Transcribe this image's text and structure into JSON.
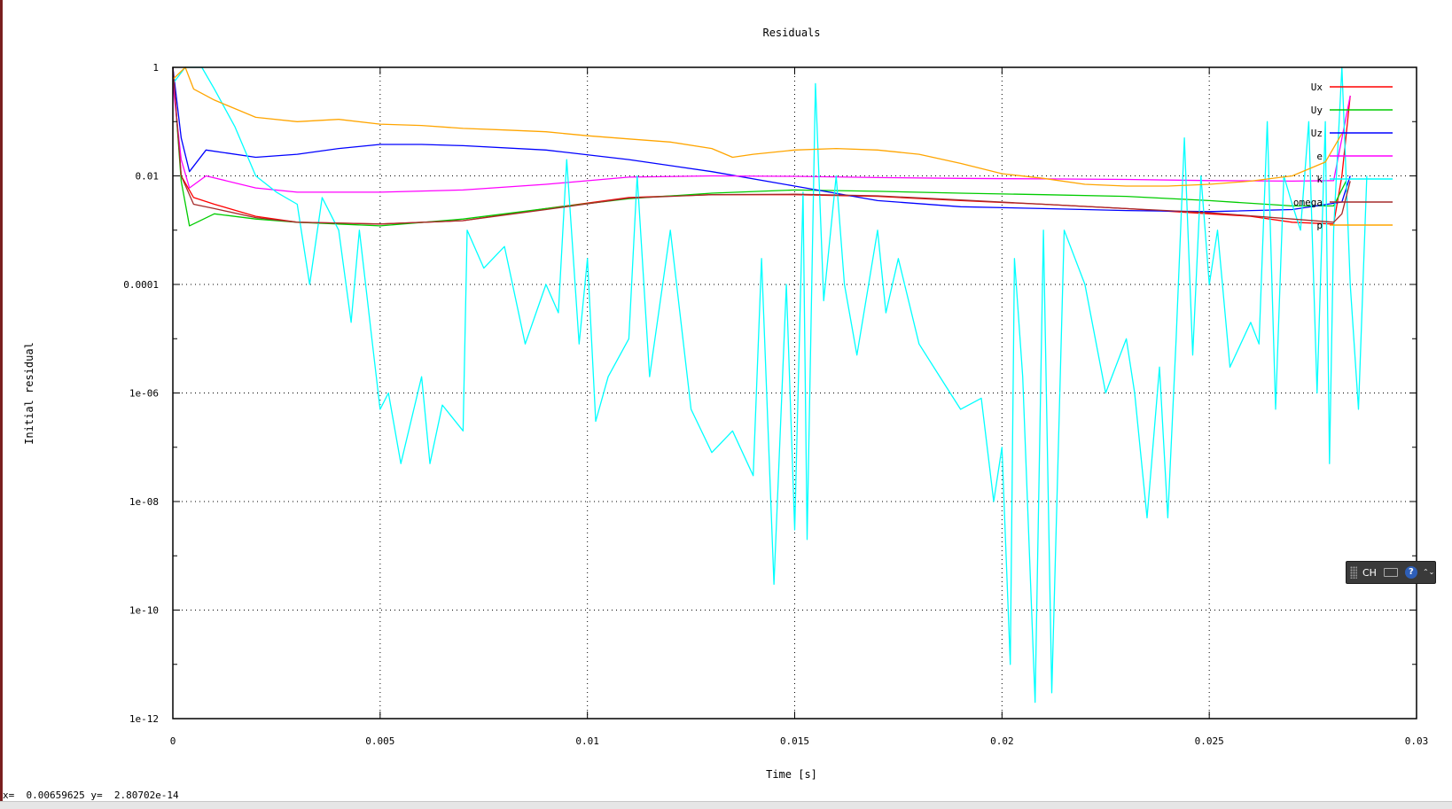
{
  "window": {
    "status_text": "x=  0.00659625 y=  2.80702e-14",
    "ime_toolbar": {
      "label": "CH",
      "keyboard_icon": "keyboard-icon",
      "help_icon": "help-icon",
      "help_glyph": "?",
      "more_glyph": "⌃⌄"
    }
  },
  "chart_data": {
    "type": "line",
    "title": "Residuals",
    "xlabel": "Time [s]",
    "ylabel": "Initial residual",
    "yscale": "log",
    "xlim": [
      0,
      0.03
    ],
    "ylim": [
      1e-12,
      1
    ],
    "grid": true,
    "legend_position": "top-right",
    "xticks": [
      {
        "value": 0,
        "label": "0"
      },
      {
        "value": 0.005,
        "label": "0.005"
      },
      {
        "value": 0.01,
        "label": "0.01"
      },
      {
        "value": 0.015,
        "label": "0.015"
      },
      {
        "value": 0.02,
        "label": "0.02"
      },
      {
        "value": 0.025,
        "label": "0.025"
      },
      {
        "value": 0.03,
        "label": "0.03"
      }
    ],
    "yticks": [
      {
        "value": 1,
        "label": "1"
      },
      {
        "value": 0.01,
        "label": "0.01"
      },
      {
        "value": 0.0001,
        "label": "0.0001"
      },
      {
        "value": 1e-06,
        "label": "1e-06"
      },
      {
        "value": 1e-08,
        "label": "1e-08"
      },
      {
        "value": 1e-10,
        "label": "1e-10"
      },
      {
        "value": 1e-12,
        "label": "1e-12"
      }
    ],
    "series": [
      {
        "name": "Ux",
        "color": "#ff0000",
        "points": [
          [
            0,
            1
          ],
          [
            0.0002,
            0.01
          ],
          [
            0.0005,
            0.004
          ],
          [
            0.001,
            0.003
          ],
          [
            0.002,
            0.0018
          ],
          [
            0.003,
            0.0014
          ],
          [
            0.005,
            0.0013
          ],
          [
            0.007,
            0.0015
          ],
          [
            0.009,
            0.0025
          ],
          [
            0.011,
            0.004
          ],
          [
            0.013,
            0.0045
          ],
          [
            0.015,
            0.0045
          ],
          [
            0.017,
            0.0042
          ],
          [
            0.019,
            0.0035
          ],
          [
            0.021,
            0.003
          ],
          [
            0.023,
            0.0025
          ],
          [
            0.025,
            0.002
          ],
          [
            0.026,
            0.0018
          ],
          [
            0.027,
            0.0014
          ],
          [
            0.028,
            0.0013
          ],
          [
            0.0282,
            0.01
          ],
          [
            0.0284,
            0.3
          ]
        ]
      },
      {
        "name": "Uy",
        "color": "#00cc00",
        "points": [
          [
            0,
            1
          ],
          [
            0.0002,
            0.008
          ],
          [
            0.0004,
            0.0012
          ],
          [
            0.001,
            0.002
          ],
          [
            0.002,
            0.0016
          ],
          [
            0.003,
            0.0014
          ],
          [
            0.005,
            0.0012
          ],
          [
            0.007,
            0.0016
          ],
          [
            0.009,
            0.0025
          ],
          [
            0.011,
            0.0038
          ],
          [
            0.013,
            0.0048
          ],
          [
            0.015,
            0.0055
          ],
          [
            0.017,
            0.0052
          ],
          [
            0.019,
            0.0048
          ],
          [
            0.021,
            0.0045
          ],
          [
            0.023,
            0.0042
          ],
          [
            0.025,
            0.0035
          ],
          [
            0.027,
            0.0028
          ],
          [
            0.028,
            0.0028
          ],
          [
            0.0283,
            0.008
          ]
        ]
      },
      {
        "name": "Uz",
        "color": "#0000ff",
        "points": [
          [
            0,
            1
          ],
          [
            0.0002,
            0.05
          ],
          [
            0.0004,
            0.012
          ],
          [
            0.0008,
            0.03
          ],
          [
            0.002,
            0.022
          ],
          [
            0.003,
            0.025
          ],
          [
            0.004,
            0.032
          ],
          [
            0.005,
            0.038
          ],
          [
            0.006,
            0.038
          ],
          [
            0.007,
            0.036
          ],
          [
            0.009,
            0.03
          ],
          [
            0.011,
            0.02
          ],
          [
            0.013,
            0.012
          ],
          [
            0.015,
            0.0065
          ],
          [
            0.017,
            0.0035
          ],
          [
            0.019,
            0.0027
          ],
          [
            0.021,
            0.0025
          ],
          [
            0.023,
            0.0023
          ],
          [
            0.025,
            0.0022
          ],
          [
            0.027,
            0.0024
          ],
          [
            0.0282,
            0.0033
          ],
          [
            0.0284,
            0.01
          ]
        ]
      },
      {
        "name": "e",
        "color": "#ff00ff",
        "points": [
          [
            0,
            0.5
          ],
          [
            0.0002,
            0.02
          ],
          [
            0.0004,
            0.006
          ],
          [
            0.0008,
            0.01
          ],
          [
            0.002,
            0.006
          ],
          [
            0.003,
            0.005
          ],
          [
            0.005,
            0.005
          ],
          [
            0.007,
            0.0055
          ],
          [
            0.009,
            0.007
          ],
          [
            0.011,
            0.0095
          ],
          [
            0.013,
            0.01
          ],
          [
            0.015,
            0.0098
          ],
          [
            0.017,
            0.0093
          ],
          [
            0.019,
            0.009
          ],
          [
            0.021,
            0.0088
          ],
          [
            0.023,
            0.0086
          ],
          [
            0.025,
            0.0082
          ],
          [
            0.027,
            0.008
          ],
          [
            0.028,
            0.0082
          ],
          [
            0.0284,
            0.3
          ]
        ]
      },
      {
        "name": "k",
        "color": "#00ffff",
        "points": [
          [
            0,
            0.5
          ],
          [
            0.0003,
            1
          ],
          [
            0.0007,
            1
          ],
          [
            0.001,
            0.4
          ],
          [
            0.0015,
            0.08
          ],
          [
            0.002,
            0.01
          ],
          [
            0.0025,
            0.005
          ],
          [
            0.003,
            0.003
          ],
          [
            0.0033,
            0.0001
          ],
          [
            0.0036,
            0.004
          ],
          [
            0.004,
            0.001
          ],
          [
            0.0043,
            2e-05
          ],
          [
            0.0045,
            0.001
          ],
          [
            0.0048,
            1e-05
          ],
          [
            0.005,
            5e-07
          ],
          [
            0.0052,
            1e-06
          ],
          [
            0.0055,
            5e-08
          ],
          [
            0.006,
            2e-06
          ],
          [
            0.0062,
            5e-08
          ],
          [
            0.0065,
            6e-07
          ],
          [
            0.007,
            2e-07
          ],
          [
            0.0071,
            0.001
          ],
          [
            0.0075,
            0.0002
          ],
          [
            0.008,
            0.0005
          ],
          [
            0.0085,
            8e-06
          ],
          [
            0.009,
            0.0001
          ],
          [
            0.0093,
            3e-05
          ],
          [
            0.0095,
            0.02
          ],
          [
            0.0098,
            8e-06
          ],
          [
            0.01,
            0.0003
          ],
          [
            0.0102,
            3e-07
          ],
          [
            0.0105,
            2e-06
          ],
          [
            0.011,
            1e-05
          ],
          [
            0.0112,
            0.01
          ],
          [
            0.0115,
            2e-06
          ],
          [
            0.012,
            0.001
          ],
          [
            0.0125,
            5e-07
          ],
          [
            0.013,
            8e-08
          ],
          [
            0.0135,
            2e-07
          ],
          [
            0.014,
            3e-08
          ],
          [
            0.0142,
            0.0003
          ],
          [
            0.0145,
            3e-10
          ],
          [
            0.0148,
            0.0001
          ],
          [
            0.015,
            3e-09
          ],
          [
            0.0152,
            0.005
          ],
          [
            0.0153,
            2e-09
          ],
          [
            0.0155,
            0.5
          ],
          [
            0.0157,
            5e-05
          ],
          [
            0.016,
            0.01
          ],
          [
            0.0162,
            0.0001
          ],
          [
            0.0165,
            5e-06
          ],
          [
            0.017,
            0.001
          ],
          [
            0.0172,
            3e-05
          ],
          [
            0.0175,
            0.0003
          ],
          [
            0.018,
            8e-06
          ],
          [
            0.0185,
            2e-06
          ],
          [
            0.019,
            5e-07
          ],
          [
            0.0195,
            8e-07
          ],
          [
            0.0198,
            1e-08
          ],
          [
            0.02,
            1e-07
          ],
          [
            0.0202,
            1e-11
          ],
          [
            0.0203,
            0.0003
          ],
          [
            0.0205,
            2e-06
          ],
          [
            0.0208,
            2e-12
          ],
          [
            0.021,
            0.001
          ],
          [
            0.0212,
            3e-12
          ],
          [
            0.0215,
            0.001
          ],
          [
            0.022,
            0.0001
          ],
          [
            0.0225,
            1e-06
          ],
          [
            0.023,
            1e-05
          ],
          [
            0.0232,
            1e-06
          ],
          [
            0.0235,
            5e-09
          ],
          [
            0.0238,
            3e-06
          ],
          [
            0.024,
            5e-09
          ],
          [
            0.0242,
            1e-05
          ],
          [
            0.0244,
            0.05
          ],
          [
            0.0246,
            5e-06
          ],
          [
            0.0248,
            0.01
          ],
          [
            0.025,
            0.0001
          ],
          [
            0.0252,
            0.001
          ],
          [
            0.0255,
            3e-06
          ],
          [
            0.026,
            2e-05
          ],
          [
            0.0262,
            8e-06
          ],
          [
            0.0264,
            0.1
          ],
          [
            0.0266,
            5e-07
          ],
          [
            0.0268,
            0.01
          ],
          [
            0.027,
            0.003
          ],
          [
            0.0272,
            0.001
          ],
          [
            0.0274,
            0.1
          ],
          [
            0.0276,
            1e-06
          ],
          [
            0.0278,
            0.1
          ],
          [
            0.0279,
            5e-08
          ],
          [
            0.028,
            0.001
          ],
          [
            0.0282,
            1
          ],
          [
            0.0284,
            0.0001
          ],
          [
            0.0286,
            5e-07
          ],
          [
            0.0288,
            0.01
          ]
        ]
      },
      {
        "name": "omega",
        "color": "#a52a2a",
        "points": [
          [
            0,
            1
          ],
          [
            0.0002,
            0.01
          ],
          [
            0.0005,
            0.003
          ],
          [
            0.001,
            0.0025
          ],
          [
            0.002,
            0.0017
          ],
          [
            0.003,
            0.0014
          ],
          [
            0.005,
            0.0013
          ],
          [
            0.007,
            0.0015
          ],
          [
            0.009,
            0.0024
          ],
          [
            0.011,
            0.0039
          ],
          [
            0.013,
            0.0045
          ],
          [
            0.015,
            0.0046
          ],
          [
            0.017,
            0.0043
          ],
          [
            0.019,
            0.0036
          ],
          [
            0.021,
            0.003
          ],
          [
            0.023,
            0.0025
          ],
          [
            0.025,
            0.0021
          ],
          [
            0.027,
            0.0016
          ],
          [
            0.028,
            0.0014
          ],
          [
            0.0282,
            0.002
          ],
          [
            0.0284,
            0.008
          ]
        ]
      },
      {
        "name": "p",
        "color": "#ffa500",
        "points": [
          [
            0,
            0.6
          ],
          [
            0.0003,
            1
          ],
          [
            0.0005,
            0.4
          ],
          [
            0.001,
            0.25
          ],
          [
            0.002,
            0.12
          ],
          [
            0.003,
            0.1
          ],
          [
            0.004,
            0.11
          ],
          [
            0.005,
            0.09
          ],
          [
            0.006,
            0.085
          ],
          [
            0.007,
            0.075
          ],
          [
            0.008,
            0.07
          ],
          [
            0.009,
            0.065
          ],
          [
            0.01,
            0.055
          ],
          [
            0.011,
            0.048
          ],
          [
            0.012,
            0.042
          ],
          [
            0.013,
            0.032
          ],
          [
            0.0135,
            0.022
          ],
          [
            0.014,
            0.025
          ],
          [
            0.015,
            0.03
          ],
          [
            0.016,
            0.032
          ],
          [
            0.017,
            0.03
          ],
          [
            0.018,
            0.025
          ],
          [
            0.019,
            0.017
          ],
          [
            0.02,
            0.011
          ],
          [
            0.021,
            0.009
          ],
          [
            0.022,
            0.007
          ],
          [
            0.023,
            0.0065
          ],
          [
            0.024,
            0.0065
          ],
          [
            0.025,
            0.007
          ],
          [
            0.026,
            0.008
          ],
          [
            0.027,
            0.01
          ],
          [
            0.0278,
            0.018
          ],
          [
            0.0282,
            0.06
          ]
        ]
      }
    ]
  }
}
